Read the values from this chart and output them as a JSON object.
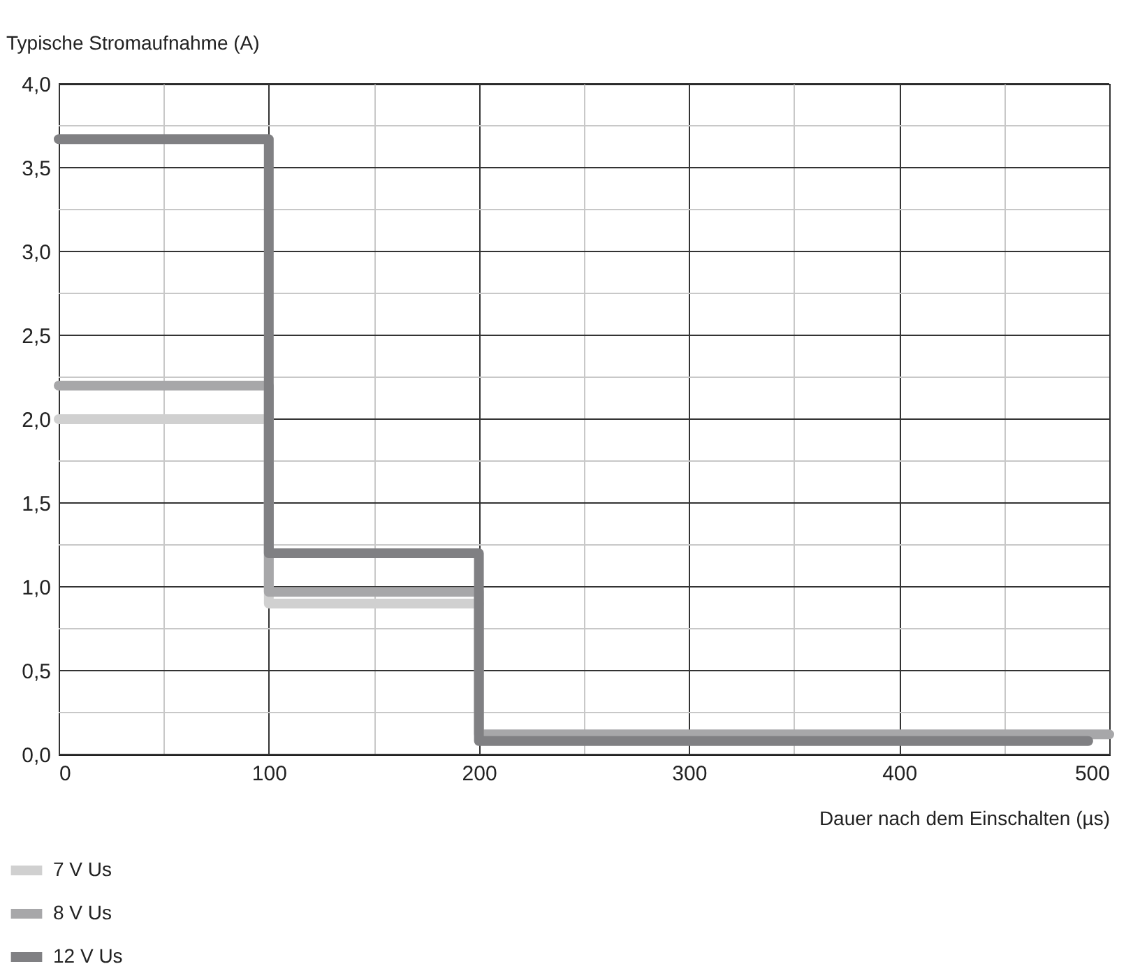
{
  "chart_data": {
    "type": "step",
    "xlabel": "Dauer nach dem Einschalten (µs)",
    "ylabel": "Typische Stromaufnahme (A)",
    "xlim": [
      0,
      500
    ],
    "xticks": [
      0,
      {
        "value": 50,
        "label": null
      },
      100,
      {
        "value": 150,
        "label": null
      },
      200,
      {
        "value": 250,
        "label": null
      },
      300,
      {
        "value": 350,
        "label": null
      },
      400,
      {
        "value": 450,
        "label": null
      },
      500
    ],
    "ylim": [
      0,
      4
    ],
    "yticks": [
      {
        "value": 0,
        "label": "0,0"
      },
      {
        "value": 0.25,
        "label": null
      },
      {
        "value": 0.5,
        "label": "0,5"
      },
      {
        "value": 0.75,
        "label": null
      },
      {
        "value": 1,
        "label": "1,0"
      },
      {
        "value": 1.25,
        "label": null
      },
      {
        "value": 1.5,
        "label": "1,5"
      },
      {
        "value": 1.75,
        "label": null
      },
      {
        "value": 2,
        "label": "2,0"
      },
      {
        "value": 2.25,
        "label": null
      },
      {
        "value": 2.5,
        "label": "2,5"
      },
      {
        "value": 2.75,
        "label": null
      },
      {
        "value": 3,
        "label": "3,0"
      },
      {
        "value": 3.25,
        "label": null
      },
      {
        "value": 3.5,
        "label": "3,5"
      },
      {
        "value": 3.75,
        "label": null
      },
      {
        "value": 4,
        "label": "4,0"
      }
    ],
    "grid": true,
    "legend": "bottom left",
    "line_style": "solid",
    "series": [
      {
        "name": "7 V Us",
        "color": "#d0d0d0",
        "x": [
          0,
          100,
          200
        ],
        "values": [
          2.0,
          0.9,
          0.9
        ]
      },
      {
        "name": "8 V Us",
        "color": "#a7a7a9",
        "x": [
          0,
          100,
          200,
          500
        ],
        "values": [
          2.2,
          0.97,
          0.12,
          0.12
        ]
      },
      {
        "name": "12 V Us",
        "color": "#808083",
        "x": [
          0,
          100,
          200,
          490
        ],
        "values": [
          3.67,
          1.2,
          0.08,
          0.08
        ]
      }
    ]
  }
}
